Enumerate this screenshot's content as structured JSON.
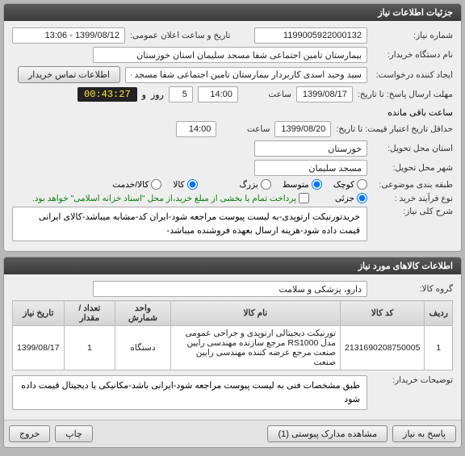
{
  "panel1_title": "جزئیات اطلاعات نیاز",
  "labels": {
    "need_no": "شماره نیاز:",
    "announce_dt": "تاریخ و ساعت اعلان عمومی:",
    "buyer_org": "نام دستگاه خریدار:",
    "creator": "ایجاد کننده درخواست:",
    "contact_btn": "اطلاعات تماس خریدار",
    "reply_deadline": "مهلت ارسال پاسخ: تا تاریخ:",
    "hour": "ساعت",
    "and": "و",
    "day": "روز",
    "remaining": "ساعت باقی مانده",
    "price_valid": "حداقل تاریخ اعتبار قیمت: تا تاریخ:",
    "delivery_prov": "استان محل تحویل:",
    "delivery_city": "شهر محل تحویل:",
    "budget_type": "طبقه بندی موضوعی:",
    "small": "کوچک",
    "medium": "متوسط",
    "large": "بزرگ",
    "goods": "کالا",
    "service": "کالا/خدمت",
    "buy_type": "نوع فرآیند خرید :",
    "partial": "جزئی",
    "partial_note": "پرداخت تمام یا بخشی از مبلغ خرید،از محل \"اسناد خزانه اسلامی\" خواهد بود.",
    "general_desc": "شرح کلی نیاز:",
    "panel2_title": "اطلاعات کالاهای مورد نیاز",
    "goods_group": "گروه کالا:",
    "buyer_notes": "توضیحات خریدار:",
    "back_btn": "پاسخ به نیاز",
    "attach_btn": "مشاهده مدارک پیوستی (1)",
    "print_btn": "چاپ",
    "exit_btn": "خروج"
  },
  "values": {
    "need_no": "1199005922000132",
    "announce_dt": "1399/08/12 - 13:06",
    "buyer_org": "بیمارستان تامین اجتماعی شفا مسجد سلیمان استان خوزستان",
    "creator": "سید وحید اسدی کاربردار بیمارستان تامین اجتماعی شفا مسجد سلیمان است",
    "reply_date": "1399/08/17",
    "reply_hour": "14:00",
    "days": "5",
    "timer": "00:43:27",
    "price_date": "1399/08/20",
    "price_hour": "14:00",
    "province": "خوزستان",
    "city": "مسجد سلیمان",
    "general_desc": "خریدتورنیکت ارتوپدی-به لیست پیوست مراجعه شود-ایران کد-مشابه میباشد-کالای ایرانی قیمت داده شود-هزینه ارسال بعهده فروشنده میباشد-",
    "goods_group": "دارو، پزشکی و سلامت",
    "buyer_notes": "طبق مشخصات فنی به لیست پیوست مراجعه شود-ایرانی باشد-مکانیکی یا دیجیتال قیمت داده شود"
  },
  "table": {
    "cols": [
      "ردیف",
      "کد کالا",
      "نام کالا",
      "واحد شمارش",
      "تعداد / مقدار",
      "تاریخ نیاز"
    ],
    "rows": [
      [
        "1",
        "2131690208750005",
        "تورنیکت دیجیتالی ارتوپدی و جراحی عمومی مدل RS1000 مرجع سازنده مهندسی رایین صنعت مرجع عرضه کننده مهندسی رایین صنعت",
        "دستگاه",
        "1",
        "1399/08/17"
      ]
    ]
  }
}
